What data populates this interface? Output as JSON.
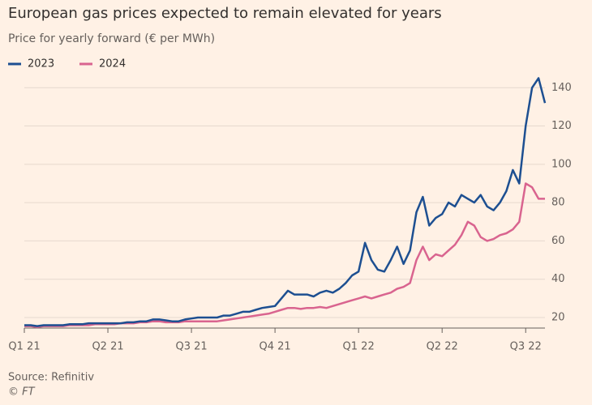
{
  "chart_data": {
    "type": "line",
    "title": "European gas prices expected to remain elevated for years",
    "subtitle": "Price for yearly forward (€ per MWh)",
    "source": "Source: Refinitiv",
    "credit": "© FT",
    "categories": [
      "Q1 21",
      null,
      null,
      null,
      null,
      null,
      null,
      null,
      null,
      null,
      null,
      null,
      null,
      "Q2 21",
      null,
      null,
      null,
      null,
      null,
      null,
      null,
      null,
      null,
      null,
      null,
      null,
      "Q3 21",
      null,
      null,
      null,
      null,
      null,
      null,
      null,
      null,
      null,
      null,
      null,
      null,
      "Q4 21",
      null,
      null,
      null,
      null,
      null,
      null,
      null,
      null,
      null,
      null,
      null,
      null,
      "Q1 22",
      null,
      null,
      null,
      null,
      null,
      null,
      null,
      null,
      null,
      null,
      null,
      null,
      "Q2 22",
      null,
      null,
      null,
      null,
      null,
      null,
      null,
      null,
      null,
      null,
      null,
      null,
      "Q3 22",
      null,
      null,
      null
    ],
    "series": [
      {
        "name": "2023",
        "color": "#1d4f91",
        "values": [
          16,
          16,
          15.5,
          16,
          16,
          16,
          16,
          16.5,
          16.5,
          16.5,
          17,
          17,
          17,
          17,
          17,
          17,
          17.5,
          17.5,
          18,
          18,
          19,
          19,
          18.5,
          18,
          18,
          19,
          19.5,
          20,
          20,
          20,
          20,
          21,
          21,
          22,
          23,
          23,
          24,
          25,
          25.5,
          26,
          30,
          34,
          32,
          32,
          32,
          31,
          33,
          34,
          33,
          35,
          38,
          42,
          44,
          59,
          50,
          45,
          44,
          50,
          57,
          48,
          55,
          75,
          83,
          68,
          72,
          74,
          80,
          78,
          84,
          82,
          80,
          84,
          78,
          76,
          80,
          86,
          97,
          90,
          120,
          140,
          145,
          132
        ]
      },
      {
        "name": "2024",
        "color": "#d9648f",
        "values": [
          15.5,
          15.5,
          15,
          15.5,
          15.5,
          15.5,
          15.5,
          16,
          16,
          16,
          16,
          16.5,
          16.5,
          16.5,
          16.5,
          17,
          17,
          17,
          17.5,
          17.5,
          18,
          18,
          17.5,
          17.5,
          17.5,
          18,
          18,
          18,
          18,
          18,
          18,
          18.5,
          19,
          19.5,
          20,
          20.5,
          21,
          21.5,
          22,
          23,
          24,
          25,
          25,
          24.5,
          25,
          25,
          25.5,
          25,
          26,
          27,
          28,
          29,
          30,
          31,
          30,
          31,
          32,
          33,
          35,
          36,
          38,
          50,
          57,
          50,
          53,
          52,
          55,
          58,
          63,
          70,
          68,
          62,
          60,
          61,
          63,
          64,
          66,
          70,
          90,
          88,
          82,
          82
        ]
      }
    ],
    "ylim": [
      14.5,
      143.5
    ],
    "yticks": [
      20,
      40,
      60,
      80,
      100,
      120,
      140
    ],
    "grid": true
  }
}
